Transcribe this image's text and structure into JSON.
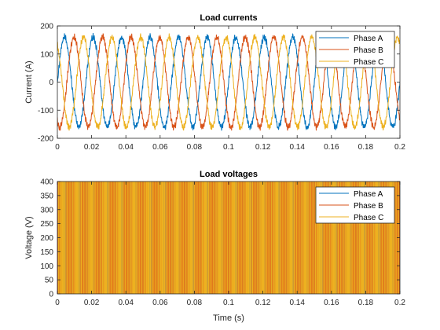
{
  "chart_data": [
    {
      "type": "line",
      "title": "Load currents",
      "xlabel": "",
      "ylabel": "Current (A)",
      "xlim": [
        0,
        0.2
      ],
      "ylim": [
        -200,
        200
      ],
      "xticks": [
        0,
        0.02,
        0.04,
        0.06,
        0.08,
        0.1,
        0.12,
        0.14,
        0.16,
        0.18,
        0.2
      ],
      "xtick_labels": [
        "0",
        "0.02",
        "0.04",
        "0.06",
        "0.08",
        "0.1",
        "0.12",
        "0.14",
        "0.16",
        "0.18",
        "0.2"
      ],
      "yticks": [
        -200,
        -100,
        0,
        100,
        200
      ],
      "ytick_labels": [
        "-200",
        "-100",
        "0",
        "100",
        "200"
      ],
      "legend_position": "top-right",
      "grid": false,
      "waveform": "sinusoidal with ripple",
      "frequency_hz": 60,
      "series": [
        {
          "name": "Phase A",
          "amplitude": 160,
          "phase_deg": 0,
          "color": "#0072BD"
        },
        {
          "name": "Phase B",
          "amplitude": 160,
          "phase_deg": -120,
          "color": "#D95319"
        },
        {
          "name": "Phase C",
          "amplitude": 160,
          "phase_deg": 120,
          "color": "#EDB120"
        }
      ]
    },
    {
      "type": "line",
      "title": "Load voltages",
      "xlabel": "Time (s)",
      "ylabel": "Voltage (V)",
      "xlim": [
        0,
        0.2
      ],
      "ylim": [
        0,
        400
      ],
      "xticks": [
        0,
        0.02,
        0.04,
        0.06,
        0.08,
        0.1,
        0.12,
        0.14,
        0.16,
        0.18,
        0.2
      ],
      "xtick_labels": [
        "0",
        "0.02",
        "0.04",
        "0.06",
        "0.08",
        "0.1",
        "0.12",
        "0.14",
        "0.16",
        "0.18",
        "0.2"
      ],
      "yticks": [
        0,
        50,
        100,
        150,
        200,
        250,
        300,
        350,
        400
      ],
      "ytick_labels": [
        "0",
        "50",
        "100",
        "150",
        "200",
        "250",
        "300",
        "350",
        "400"
      ],
      "legend_position": "top-right",
      "grid": false,
      "waveform": "PWM square wave switching between 0 and 400",
      "levels": [
        0,
        400
      ],
      "series": [
        {
          "name": "Phase A",
          "color": "#0072BD"
        },
        {
          "name": "Phase B",
          "color": "#D95319"
        },
        {
          "name": "Phase C",
          "color": "#EDB120"
        }
      ]
    }
  ]
}
